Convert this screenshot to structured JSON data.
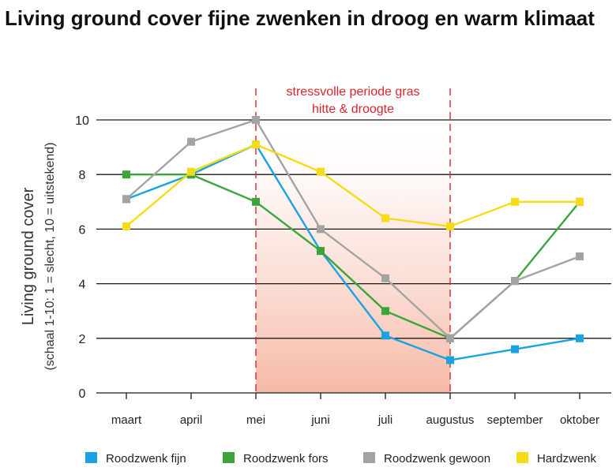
{
  "chart_data": {
    "type": "line",
    "title": "Living ground cover fijne zwenken in droog en warm klimaat",
    "ylabel": "Living ground cover",
    "ylabel_sub": "(schaal 1-10: 1 = slecht, 10 = uitstekend)",
    "ylim": [
      0,
      10
    ],
    "yticks": [
      0,
      2,
      4,
      6,
      8,
      10
    ],
    "categories": [
      "maart",
      "april",
      "mei",
      "juni",
      "juli",
      "augustus",
      "september",
      "oktober"
    ],
    "highlight": {
      "label_line1": "stressvolle periode gras",
      "label_line2": "hitte & droogte",
      "from": "mei",
      "to": "augustus",
      "color": "#d9262c"
    },
    "series": [
      {
        "name": "Roodzwenk fijn",
        "color": "#1aa3e0",
        "values": [
          7.1,
          8.0,
          9.1,
          5.2,
          2.1,
          1.2,
          1.6,
          2.0
        ]
      },
      {
        "name": "Roodzwenk fors",
        "color": "#3aa63a",
        "values": [
          8.0,
          8.0,
          7.0,
          5.2,
          3.0,
          2.0,
          4.1,
          7.0
        ]
      },
      {
        "name": "Roodzwenk gewoon",
        "color": "#a3a3a3",
        "values": [
          7.1,
          9.2,
          10.0,
          6.0,
          4.2,
          2.0,
          4.1,
          5.0
        ]
      },
      {
        "name": "Hardzwenk",
        "color": "#f5dc16",
        "values": [
          6.1,
          8.1,
          9.1,
          8.1,
          6.4,
          6.1,
          7.0,
          7.0
        ]
      }
    ],
    "grid": "horizontal",
    "legend": "bottom"
  }
}
